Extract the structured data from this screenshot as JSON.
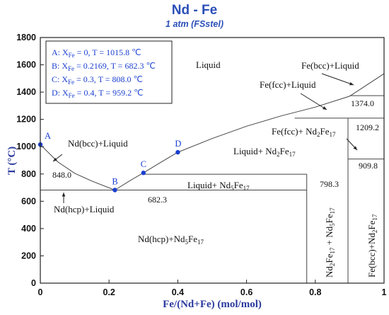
{
  "chart_data": {
    "type": "line",
    "title": "Nd - Fe",
    "subtitle": "1 atm (FSstel)",
    "xlabel": "Fe/(Nd+Fe) (mol/mol)",
    "ylabel": "T (°C)",
    "xlim": [
      0,
      1
    ],
    "ylim": [
      0,
      1800
    ],
    "x_ticks": [
      "0",
      "0.2",
      "0.4",
      "0.6",
      "0.8",
      "1"
    ],
    "y_ticks": [
      "0",
      "200",
      "400",
      "600",
      "800",
      "1000",
      "1200",
      "1400",
      "1600",
      "1800"
    ],
    "series": [
      {
        "values": [
          [
            0,
            1015.8
          ],
          [
            0.05,
            890
          ],
          [
            0.1,
            805
          ],
          [
            0.15,
            748
          ],
          [
            0.2169,
            682.3
          ]
        ]
      },
      {
        "values": [
          [
            0.2169,
            682.3
          ],
          [
            0.26,
            750
          ],
          [
            0.3,
            808
          ],
          [
            0.35,
            885
          ],
          [
            0.4,
            959.2
          ],
          [
            0.5,
            1060
          ],
          [
            0.6,
            1150
          ],
          [
            0.7,
            1225
          ],
          [
            0.8,
            1290
          ],
          [
            0.9,
            1370
          ],
          [
            1.0,
            1535
          ]
        ]
      },
      {
        "values": [
          [
            0,
            682.3
          ],
          [
            0.775,
            682.3
          ]
        ]
      },
      {
        "values": [
          [
            0.3,
            798.3
          ],
          [
            0.775,
            798.3
          ]
        ]
      },
      {
        "values": [
          [
            0.775,
            0
          ],
          [
            0.775,
            798.3
          ]
        ]
      },
      {
        "values": [
          [
            0.895,
            0
          ],
          [
            0.895,
            1209.2
          ]
        ]
      },
      {
        "values": [
          [
            0.895,
            909.8
          ],
          [
            1.0,
            909.8
          ]
        ]
      },
      {
        "values": [
          [
            0.74,
            1209.2
          ],
          [
            1.0,
            1209.2
          ]
        ]
      },
      {
        "values": [
          [
            0.9,
            1374.0
          ],
          [
            1.0,
            1374.0
          ]
        ]
      }
    ],
    "key_points": [
      {
        "label": "A",
        "x": 0,
        "y": 1015.8
      },
      {
        "label": "B",
        "x": 0.2169,
        "y": 682.3
      },
      {
        "label": "C",
        "x": 0.3,
        "y": 808.0
      },
      {
        "label": "D",
        "x": 0.4,
        "y": 959.2
      }
    ],
    "legend_lines": [
      {
        "p": "A: X",
        "sub": "Fe",
        "rest": " = 0, T = 1015.8 ℃"
      },
      {
        "p": "B: X",
        "sub": "Fe",
        "rest": " = 0.2169, T = 682.3 ℃"
      },
      {
        "p": "C: X",
        "sub": "Fe",
        "rest": " = 0.3, T = 808.0 ℃"
      },
      {
        "p": "D: X",
        "sub": "Fe",
        "rest": " = 0.4, T = 959.2 ℃"
      }
    ],
    "regions": {
      "liquid": "Liquid",
      "fe_bcc_liquid": "Fe(bcc)+Liquid",
      "fe_fcc_liquid": "Fe(fcc)+Liquid",
      "nd_bcc_liquid": "Nd(bcc)+Liquid",
      "fe_fcc_nd2fe17": {
        "a": "Fe(fcc)+ Nd",
        "b": "2",
        "c": "Fe",
        "d": "17"
      },
      "liquid_nd2fe17": {
        "a": "Liquid+ Nd",
        "b": "2",
        "c": "Fe",
        "d": "17"
      },
      "liquid_nd5fe17": {
        "a": "Liquid+ Nd",
        "b": "5",
        "c": "Fe",
        "d": "17"
      },
      "nd_hcp_liquid": "Nd(hcp)+Liquid",
      "nd_hcp_nd5fe17": {
        "a": "Nd(hcp)+Nd",
        "b": "5",
        "c": "Fe",
        "d": "17"
      },
      "nd2fe17_nd5fe17": {
        "a": "Nd",
        "b": "2",
        "c": "Fe",
        "d": "17",
        "e": " + Nd",
        "f": "5",
        "g": "Fe",
        "h": "17"
      },
      "fe_bcc_nd2fe17": {
        "a": "Fe(bcc)+Nd",
        "b": "2",
        "c": "Fe",
        "d": "17"
      }
    },
    "temperature_labels": [
      "848.0",
      "682.3",
      "798.3",
      "909.8",
      "1209.2",
      "1374.0"
    ],
    "colors": {
      "title": "#2b4fb8",
      "points": "#1a3fd0",
      "curve": "#555555"
    },
    "grid": false
  }
}
